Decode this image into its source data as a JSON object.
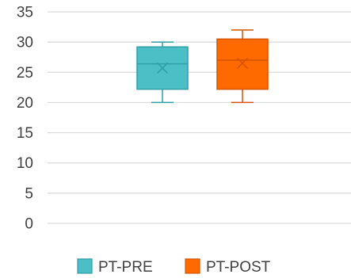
{
  "chart_data": {
    "type": "box",
    "ylim": [
      0,
      35
    ],
    "yticks": [
      0,
      5,
      10,
      15,
      20,
      25,
      30,
      35
    ],
    "grid": true,
    "legend_position": "bottom",
    "series": [
      {
        "name": "PT-PRE",
        "color": "#4bbec6",
        "edge": "#2f9ea6",
        "min": 20,
        "q1": 22.2,
        "median": 26.4,
        "mean": 25.7,
        "q3": 29.2,
        "max": 30
      },
      {
        "name": "PT-POST",
        "color": "#ff6a00",
        "edge": "#d45300",
        "min": 20,
        "q1": 22.2,
        "median": 27,
        "mean": 26.5,
        "q3": 30.5,
        "max": 32
      }
    ]
  }
}
